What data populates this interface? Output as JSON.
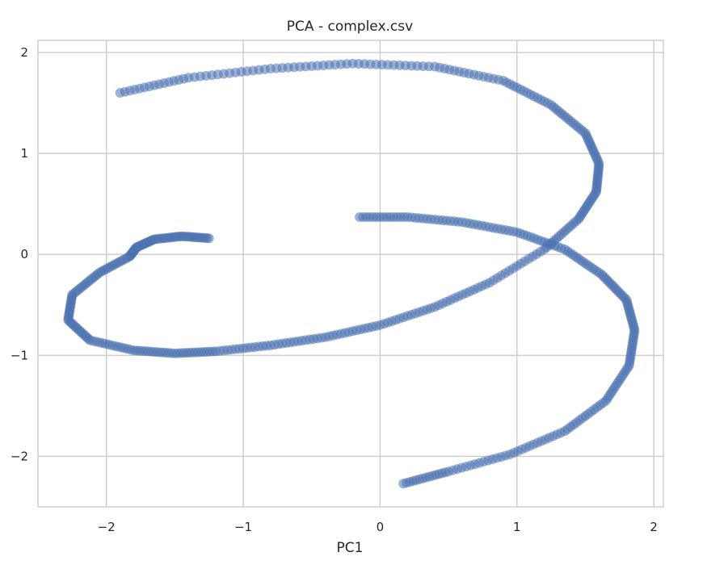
{
  "chart_data": {
    "type": "scatter",
    "title": "PCA - complex.csv",
    "xlabel": "PC1",
    "ylabel": "",
    "xlim": [
      -2.5,
      2.07
    ],
    "ylim": [
      -2.5,
      2.12
    ],
    "xticks": [
      -2,
      -1,
      0,
      1,
      2
    ],
    "yticks": [
      2,
      1,
      0,
      -1,
      -2
    ],
    "xtick_labels": [
      "−2",
      "−1",
      "0",
      "1",
      "2"
    ],
    "ytick_labels": [
      "2",
      "1",
      "0",
      "−1",
      "−2"
    ],
    "grid": true,
    "legend": "none",
    "series": [
      {
        "color": "#4c72b0",
        "x": [
          -1.25,
          -1.45,
          -1.65,
          -1.78,
          -1.83,
          -2.05,
          -2.25,
          -2.28,
          -2.12,
          -1.8,
          -1.5,
          -1.2,
          -0.8,
          -0.4,
          0.0,
          0.4,
          0.8,
          1.2,
          1.45,
          1.58,
          1.6,
          1.5,
          1.25,
          0.9,
          0.4,
          -0.2,
          -0.8,
          -1.4,
          -1.9
        ],
        "y": [
          0.16,
          0.18,
          0.15,
          0.07,
          -0.02,
          -0.18,
          -0.4,
          -0.65,
          -0.85,
          -0.95,
          -0.98,
          -0.96,
          -0.9,
          -0.82,
          -0.7,
          -0.52,
          -0.28,
          0.05,
          0.35,
          0.62,
          0.9,
          1.2,
          1.48,
          1.72,
          1.86,
          1.89,
          1.84,
          1.75,
          1.6
        ]
      },
      {
        "color": "#4c72b0",
        "x": [
          -0.15,
          0.2,
          0.6,
          1.0,
          1.35,
          1.62,
          1.8,
          1.86,
          1.82,
          1.65,
          1.35,
          0.95,
          0.5,
          0.17
        ],
        "y": [
          0.37,
          0.37,
          0.32,
          0.22,
          0.05,
          -0.2,
          -0.45,
          -0.75,
          -1.1,
          -1.45,
          -1.75,
          -1.98,
          -2.15,
          -2.27
        ]
      }
    ]
  }
}
